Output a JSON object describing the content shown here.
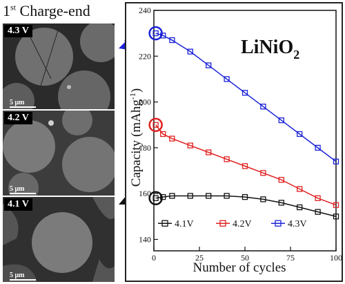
{
  "left_panel": {
    "title_number": "1",
    "title_superscript": "st",
    "title_rest": "Charge-end",
    "images": [
      {
        "label": "4.3 V",
        "scale": "5 μm"
      },
      {
        "label": "4.2 V",
        "scale": "5 μm"
      },
      {
        "label": "4.1 V",
        "scale": "5 μm"
      }
    ]
  },
  "chart_data": {
    "type": "line",
    "title": "LiNiO",
    "title_subscript": "2",
    "xlabel": "Number of cycles",
    "ylabel": "Capacity (mAhg",
    "ylabel_superscript": "-1",
    "ylabel_end": ")",
    "xlim": [
      0,
      100
    ],
    "ylim": [
      135,
      240
    ],
    "xticks": [
      0,
      25,
      50,
      75,
      100
    ],
    "yticks": [
      140,
      160,
      180,
      200,
      220,
      240
    ],
    "marker": "open-square",
    "legend_position": "bottom",
    "series": [
      {
        "name": "4.1V",
        "color": "#111111",
        "x": [
          1,
          5,
          10,
          20,
          30,
          40,
          50,
          60,
          70,
          80,
          90,
          100
        ],
        "y": [
          158,
          158.5,
          159,
          159,
          159,
          159,
          158.5,
          157.5,
          156,
          154,
          152,
          150
        ]
      },
      {
        "name": "4.2V",
        "color": "#e02020",
        "x": [
          1,
          5,
          10,
          20,
          30,
          40,
          50,
          60,
          70,
          80,
          90,
          100
        ],
        "y": [
          190,
          186,
          184,
          181,
          178,
          175,
          172,
          169,
          166,
          162,
          158,
          155
        ]
      },
      {
        "name": "4.3V",
        "color": "#1a22d8",
        "x": [
          1,
          5,
          10,
          20,
          30,
          40,
          50,
          60,
          70,
          80,
          90,
          100
        ],
        "y": [
          230,
          229,
          227,
          222,
          216,
          210,
          204,
          198,
          192,
          186,
          180,
          174
        ]
      }
    ]
  }
}
